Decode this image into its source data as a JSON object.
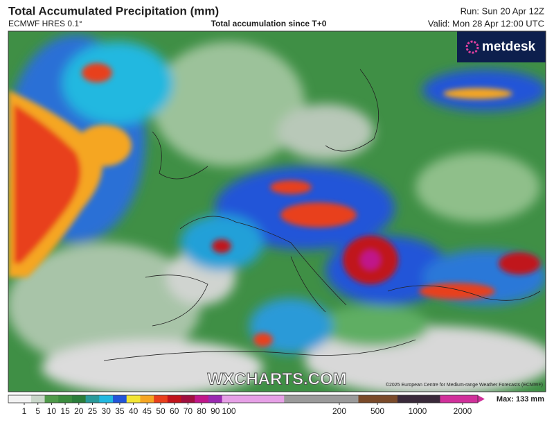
{
  "header": {
    "title": "Total Accumulated Precipitation (mm)",
    "model": "ECMWF HRES 0.1°",
    "subtitle": "Total accumulation since T+0",
    "run": "Run: Sun 20 Apr 12Z",
    "valid": "Valid: Mon 28 Apr 12:00 UTC"
  },
  "logo": {
    "text": "metdesk"
  },
  "watermark": {
    "text": "WXCHARTS.COM"
  },
  "copyright": {
    "text": "©2025 European Centre for Medium-range Weather Forecasts (ECMWF)"
  },
  "legend": {
    "ticks": [
      1,
      5,
      10,
      15,
      20,
      25,
      30,
      35,
      40,
      45,
      50,
      60,
      70,
      80,
      90,
      100,
      200,
      500,
      1000,
      2000
    ],
    "colors": [
      "#f2f2f2",
      "#c9d6c9",
      "#4f9a4a",
      "#3b8c3e",
      "#2a7d3a",
      "#2a9a9a",
      "#22b8e0",
      "#2255d8",
      "#f2e534",
      "#f5a623",
      "#e8401c",
      "#c0141c",
      "#a01040",
      "#c0188a",
      "#9a2ab0",
      "#e6a0e6",
      "#9a9a9a",
      "#7a4a2a",
      "#3a2a3a",
      "#d0309a"
    ],
    "max": "Max: 133 mm"
  }
}
